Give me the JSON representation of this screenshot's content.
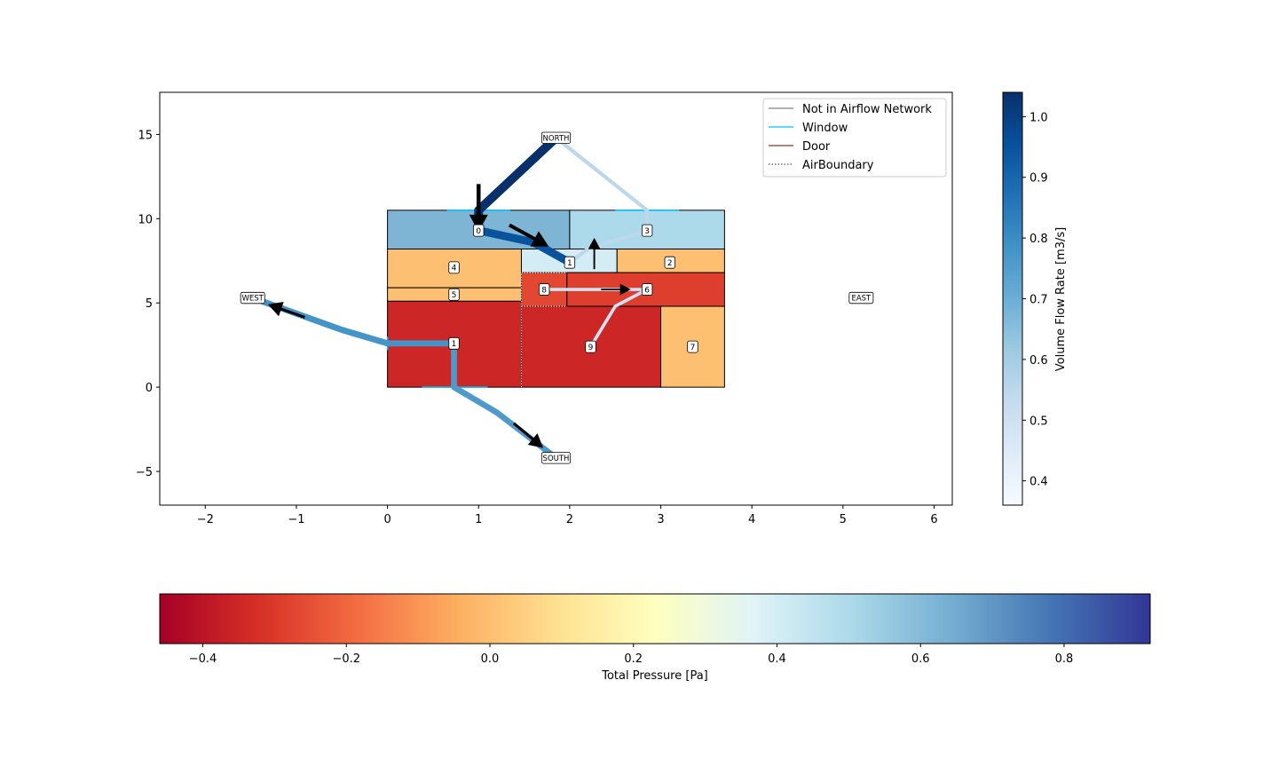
{
  "chart_data": {
    "type": "airflow-network",
    "xlim": [
      -2.5,
      6.2
    ],
    "ylim": [
      -7,
      17.5
    ],
    "x_ticks": [
      "−2",
      "−1",
      "0",
      "1",
      "2",
      "3",
      "4",
      "5",
      "6"
    ],
    "y_ticks": [
      "−5",
      "0",
      "5",
      "10",
      "15"
    ],
    "legend": {
      "position": "upper-right",
      "entries": [
        {
          "label": "Not in Airflow Network",
          "color": "#808080",
          "style": "solid"
        },
        {
          "label": "Window",
          "color": "#00bfff",
          "style": "solid"
        },
        {
          "label": "Door",
          "color": "#8b3a1e",
          "style": "solid"
        },
        {
          "label": "AirBoundary",
          "color": "#555555",
          "style": "dotted"
        }
      ]
    },
    "zones": [
      {
        "id": "zone-0",
        "label": "0",
        "x0": 0.0,
        "y0": 8.2,
        "x1": 2.0,
        "y1": 10.5,
        "pressure": 0.62,
        "label_x": 1.0,
        "label_y": 9.3
      },
      {
        "id": "zone-3",
        "label": "3",
        "x0": 2.0,
        "y0": 8.2,
        "x1": 3.7,
        "y1": 10.5,
        "pressure": 0.5,
        "label_x": 2.85,
        "label_y": 9.3
      },
      {
        "id": "zone-4",
        "label": "4",
        "x0": 0.0,
        "y0": 5.9,
        "x1": 1.47,
        "y1": 8.2,
        "pressure": 0.0,
        "label_x": 0.73,
        "label_y": 7.1
      },
      {
        "id": "zone-1-upper",
        "label": "1",
        "x0": 1.47,
        "y0": 6.8,
        "x1": 2.52,
        "y1": 8.2,
        "pressure": 0.4,
        "label_x": 2.0,
        "label_y": 7.4
      },
      {
        "id": "zone-2",
        "label": "2",
        "x0": 2.52,
        "y0": 6.8,
        "x1": 3.7,
        "y1": 8.2,
        "pressure": 0.0,
        "label_x": 3.1,
        "label_y": 7.4
      },
      {
        "id": "zone-5",
        "label": "5",
        "x0": 0.0,
        "y0": 5.1,
        "x1": 1.47,
        "y1": 5.9,
        "pressure": 0.0,
        "label_x": 0.73,
        "label_y": 5.5
      },
      {
        "id": "zone-8",
        "label": "8",
        "x0": 1.47,
        "y0": 4.8,
        "x1": 1.97,
        "y1": 6.8,
        "pressure": -0.27,
        "label_x": 1.72,
        "label_y": 5.8
      },
      {
        "id": "zone-6",
        "label": "6",
        "x0": 1.97,
        "y0": 4.8,
        "x1": 3.7,
        "y1": 6.8,
        "pressure": -0.29,
        "label_x": 2.85,
        "label_y": 5.8
      },
      {
        "id": "zone-1-lower",
        "label": "1",
        "x0": 0.0,
        "y0": 0.0,
        "x1": 1.47,
        "y1": 5.1,
        "pressure": -0.35,
        "label_x": 0.73,
        "label_y": 2.6
      },
      {
        "id": "zone-9",
        "label": "9",
        "x0": 1.47,
        "y0": 0.0,
        "x1": 3.0,
        "y1": 4.8,
        "pressure": -0.35,
        "label_x": 2.23,
        "label_y": 2.4
      },
      {
        "id": "zone-7",
        "label": "7",
        "x0": 3.0,
        "y0": 0.0,
        "x1": 3.7,
        "y1": 4.8,
        "pressure": 0.0,
        "label_x": 3.35,
        "label_y": 2.4
      }
    ],
    "external_nodes": [
      {
        "id": "north",
        "label": "NORTH",
        "x": 1.85,
        "y": 14.8
      },
      {
        "id": "west",
        "label": "WEST",
        "x": -1.48,
        "y": 5.3
      },
      {
        "id": "east",
        "label": "EAST",
        "x": 5.2,
        "y": 5.3
      },
      {
        "id": "south",
        "label": "SOUTH",
        "x": 1.85,
        "y": -4.2
      }
    ],
    "flows": [
      {
        "id": "north-to-0",
        "points": [
          [
            1.85,
            14.8
          ],
          [
            1.0,
            10.5
          ],
          [
            1.0,
            9.3
          ]
        ],
        "flow": 1.04,
        "arrow_at": [
          1.0,
          10.0
        ],
        "arrow_dir": [
          0,
          -1
        ]
      },
      {
        "id": "0-to-1",
        "points": [
          [
            1.0,
            9.3
          ],
          [
            1.6,
            8.6
          ],
          [
            2.0,
            7.4
          ]
        ],
        "flow": 0.95,
        "arrow_at": [
          1.65,
          8.7
        ],
        "arrow_dir": [
          0.55,
          -0.3
        ]
      },
      {
        "id": "north-to-3",
        "points": [
          [
            1.85,
            14.8
          ],
          [
            2.85,
            10.5
          ],
          [
            2.85,
            9.3
          ]
        ],
        "flow": 0.55,
        "arrow_at": null,
        "arrow_dir": null
      },
      {
        "id": "3-to-1",
        "points": [
          [
            2.85,
            9.3
          ],
          [
            2.2,
            8.2
          ],
          [
            2.0,
            7.4
          ]
        ],
        "flow": 0.55,
        "arrow_at": [
          2.27,
          8.35
        ],
        "arrow_dir": [
          0,
          1
        ]
      },
      {
        "id": "8-to-6",
        "points": [
          [
            1.72,
            5.8
          ],
          [
            2.85,
            5.8
          ]
        ],
        "flow": 0.5,
        "arrow_at": [
          2.58,
          5.8
        ],
        "arrow_dir": [
          1,
          0
        ]
      },
      {
        "id": "9-to-6",
        "points": [
          [
            2.23,
            2.4
          ],
          [
            2.5,
            4.8
          ],
          [
            2.85,
            5.8
          ]
        ],
        "flow": 0.5,
        "arrow_at": null,
        "arrow_dir": null
      },
      {
        "id": "1-to-west",
        "points": [
          [
            0.73,
            2.6
          ],
          [
            0.0,
            2.6
          ],
          [
            -0.5,
            3.4
          ],
          [
            -1.48,
            5.3
          ]
        ],
        "flow": 0.78,
        "arrow_at": [
          -1.2,
          4.7
        ],
        "arrow_dir": [
          -1,
          0.35
        ]
      },
      {
        "id": "1-to-south",
        "points": [
          [
            0.73,
            2.6
          ],
          [
            0.73,
            0.0
          ],
          [
            1.2,
            -1.5
          ],
          [
            1.85,
            -4.2
          ]
        ],
        "flow": 0.76,
        "arrow_at": [
          1.62,
          -3.2
        ],
        "arrow_dir": [
          0.6,
          -0.5
        ]
      }
    ],
    "window_segments": [
      {
        "x0": 0.65,
        "y0": 10.5,
        "x1": 1.35,
        "y1": 10.5
      },
      {
        "x0": 2.5,
        "y0": 10.5,
        "x1": 3.2,
        "y1": 10.5
      },
      {
        "x0": 0.38,
        "y0": 0.0,
        "x1": 1.1,
        "y1": 0.0
      },
      {
        "x0": 0.0,
        "y0": 2.2,
        "x1": 0.0,
        "y1": 3.0
      }
    ],
    "air_boundaries": [
      {
        "x0": 1.47,
        "y0": 0.0,
        "x1": 1.47,
        "y1": 6.8
      },
      {
        "x0": 1.47,
        "y0": 4.8,
        "x1": 1.97,
        "y1": 4.8
      },
      {
        "x0": 1.47,
        "y0": 6.8,
        "x1": 1.97,
        "y1": 6.8
      }
    ],
    "flow_colorbar": {
      "label": "Volume Flow Rate [m3/s]",
      "range": [
        0.36,
        1.04
      ],
      "ticks": [
        "0.4",
        "0.5",
        "0.6",
        "0.7",
        "0.8",
        "0.9",
        "1.0"
      ],
      "tick_values": [
        0.4,
        0.5,
        0.6,
        0.7,
        0.8,
        0.9,
        1.0
      ],
      "colormap": "Blues"
    },
    "pressure_colorbar": {
      "label": "Total Pressure [Pa]",
      "range": [
        -0.46,
        0.92
      ],
      "ticks": [
        "−0.4",
        "−0.2",
        "0.0",
        "0.2",
        "0.4",
        "0.6",
        "0.8"
      ],
      "tick_values": [
        -0.4,
        -0.2,
        0.0,
        0.2,
        0.4,
        0.6,
        0.8
      ],
      "colormap": "RdYlBu"
    }
  }
}
